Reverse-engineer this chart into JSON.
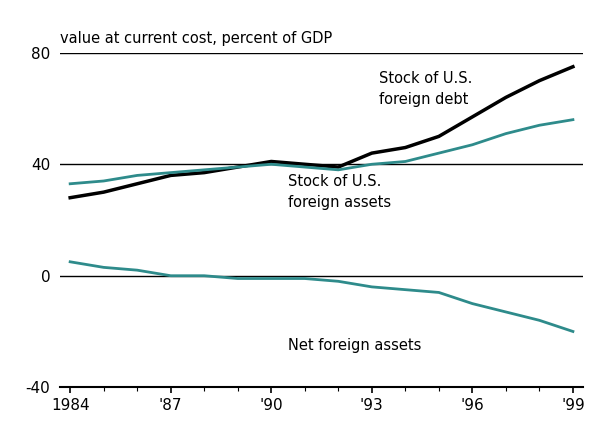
{
  "years": [
    1984,
    1985,
    1986,
    1987,
    1988,
    1989,
    1990,
    1991,
    1992,
    1993,
    1994,
    1995,
    1996,
    1997,
    1998,
    1999
  ],
  "foreign_debt": [
    28,
    30,
    33,
    36,
    37,
    39,
    41,
    40,
    39,
    44,
    46,
    50,
    57,
    64,
    70,
    75
  ],
  "foreign_assets": [
    33,
    34,
    36,
    37,
    38,
    39,
    40,
    39,
    38,
    40,
    41,
    44,
    47,
    51,
    54,
    56
  ],
  "net_foreign_assets": [
    5,
    3,
    2,
    0,
    0,
    -1,
    -1,
    -1,
    -2,
    -4,
    -5,
    -6,
    -10,
    -13,
    -16,
    -20
  ],
  "debt_color": "#000000",
  "assets_color": "#2e8b8b",
  "net_color": "#2e8b8b",
  "background_color": "#ffffff",
  "title": "value at current cost, percent of GDP",
  "ylim": [
    -40,
    80
  ],
  "yticks": [
    -40,
    0,
    40,
    80
  ],
  "xlim": [
    1984,
    1999
  ],
  "xtick_labels": [
    "1984",
    "'87",
    "'90",
    "'93",
    "'96",
    "'99"
  ],
  "xtick_positions": [
    1984,
    1987,
    1990,
    1993,
    1996,
    1999
  ],
  "debt_label": "Stock of U.S.\nforeign debt",
  "assets_label": "Stock of U.S.\nforeign assets",
  "net_label": "Net foreign assets",
  "debt_lw": 2.5,
  "assets_lw": 2.0,
  "net_lw": 2.0
}
